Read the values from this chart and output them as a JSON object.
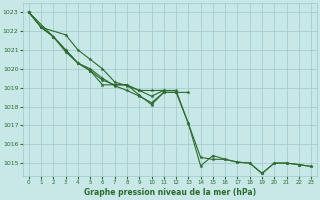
{
  "title": "Graphe pression niveau de la mer (hPa)",
  "bg_color": "#c8e8e8",
  "grid_color": "#a0c8c8",
  "line_color": "#2d6a2d",
  "xlim": [
    -0.5,
    23.5
  ],
  "ylim": [
    1014.3,
    1023.5
  ],
  "yticks": [
    1015,
    1016,
    1017,
    1018,
    1019,
    1020,
    1021,
    1022,
    1023
  ],
  "xticks": [
    0,
    1,
    2,
    3,
    4,
    5,
    6,
    7,
    8,
    9,
    10,
    11,
    12,
    13,
    14,
    15,
    16,
    17,
    18,
    19,
    20,
    21,
    22,
    23
  ],
  "series": [
    {
      "x": [
        0,
        1,
        3,
        4,
        5,
        6,
        7,
        8,
        9,
        10,
        11
      ],
      "y": [
        1023.0,
        1022.2,
        1021.8,
        1021.0,
        1020.5,
        1020.0,
        1019.3,
        1019.1,
        1018.85,
        1018.85,
        1018.85
      ]
    },
    {
      "x": [
        0,
        2,
        3,
        4,
        5,
        6,
        7,
        8,
        9,
        10,
        11,
        12,
        13
      ],
      "y": [
        1023.0,
        1021.7,
        1020.9,
        1020.3,
        1020.0,
        1019.5,
        1019.1,
        1018.85,
        1018.55,
        1018.2,
        1018.75,
        1018.75,
        1018.75
      ]
    },
    {
      "x": [
        0,
        1,
        2,
        3,
        4,
        5,
        6,
        7,
        8,
        9,
        10,
        11,
        12,
        13,
        14,
        15,
        16,
        17,
        18,
        19,
        20,
        21,
        22,
        23
      ],
      "y": [
        1023.0,
        1022.2,
        1021.7,
        1021.0,
        1020.3,
        1019.9,
        1019.4,
        1019.15,
        1019.15,
        1018.85,
        1018.55,
        1018.85,
        1018.85,
        1017.1,
        1015.3,
        1015.2,
        1015.2,
        1015.05,
        1015.0,
        1014.45,
        1015.0,
        1015.0,
        1014.92,
        1014.82
      ]
    },
    {
      "x": [
        0,
        1,
        2,
        3,
        4,
        5,
        6,
        7,
        8,
        9,
        10,
        11,
        12,
        13,
        14,
        15,
        16,
        17,
        18,
        19,
        20,
        21,
        22,
        23
      ],
      "y": [
        1023.0,
        1022.2,
        1021.7,
        1021.0,
        1020.3,
        1019.9,
        1019.15,
        1019.15,
        1019.15,
        1018.6,
        1018.1,
        1018.75,
        1018.75,
        1017.1,
        1014.85,
        1015.4,
        1015.2,
        1015.05,
        1015.0,
        1014.45,
        1015.0,
        1015.0,
        1014.92,
        1014.82
      ]
    }
  ]
}
